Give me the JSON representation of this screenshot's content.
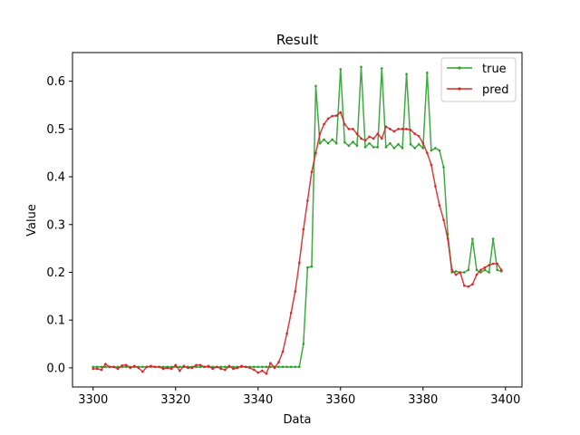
{
  "chart_data": {
    "type": "line",
    "title": "Result",
    "xlabel": "Data",
    "ylabel": "Value",
    "xlim": [
      3295,
      3404
    ],
    "ylim": [
      -0.04,
      0.66
    ],
    "xticks": [
      3300,
      3320,
      3340,
      3360,
      3380,
      3400
    ],
    "yticks": [
      0.0,
      0.1,
      0.2,
      0.3,
      0.4,
      0.5,
      0.6
    ],
    "legend_position": "top-right",
    "x_start": 3300,
    "series": [
      {
        "name": "true",
        "color": "#2ca02c",
        "values": [
          0.002,
          0.002,
          0.002,
          0.002,
          0.002,
          0.002,
          0.002,
          0.002,
          0.002,
          0.002,
          0.002,
          0.002,
          0.002,
          0.002,
          0.002,
          0.002,
          0.002,
          0.002,
          0.002,
          0.002,
          0.002,
          0.002,
          0.002,
          0.002,
          0.002,
          0.002,
          0.002,
          0.002,
          0.002,
          0.002,
          0.002,
          0.002,
          0.002,
          0.002,
          0.002,
          0.002,
          0.002,
          0.002,
          0.002,
          0.002,
          0.002,
          0.002,
          0.002,
          0.002,
          0.002,
          0.002,
          0.002,
          0.002,
          0.002,
          0.002,
          0.002,
          0.05,
          0.21,
          0.212,
          0.59,
          0.47,
          0.478,
          0.47,
          0.478,
          0.47,
          0.625,
          0.472,
          0.465,
          0.473,
          0.465,
          0.63,
          0.462,
          0.47,
          0.462,
          0.462,
          0.627,
          0.462,
          0.47,
          0.46,
          0.468,
          0.46,
          0.615,
          0.468,
          0.46,
          0.468,
          0.46,
          0.618,
          0.455,
          0.46,
          0.455,
          0.42,
          0.28,
          0.2,
          0.202,
          0.2,
          0.2,
          0.205,
          0.27,
          0.205,
          0.2,
          0.205,
          0.2,
          0.27,
          0.205,
          0.202
        ]
      },
      {
        "name": "pred",
        "color": "#d62728",
        "values": [
          -0.002,
          -0.002,
          -0.004,
          0.008,
          0.002,
          0.002,
          -0.002,
          0.005,
          0.006,
          0.0,
          0.004,
          0.0,
          -0.008,
          0.002,
          0.004,
          0.002,
          0.002,
          -0.002,
          0.0,
          -0.002,
          0.006,
          -0.006,
          0.004,
          0.0,
          0.0,
          0.006,
          0.006,
          0.002,
          0.004,
          -0.002,
          0.002,
          -0.002,
          -0.004,
          0.004,
          -0.002,
          0.0,
          0.004,
          0.002,
          0.0,
          -0.004,
          -0.01,
          -0.006,
          -0.012,
          0.01,
          0.0,
          0.012,
          0.034,
          0.072,
          0.115,
          0.16,
          0.22,
          0.29,
          0.35,
          0.41,
          0.45,
          0.49,
          0.51,
          0.522,
          0.527,
          0.528,
          0.535,
          0.51,
          0.5,
          0.5,
          0.49,
          0.48,
          0.476,
          0.484,
          0.48,
          0.49,
          0.48,
          0.505,
          0.5,
          0.495,
          0.5,
          0.5,
          0.5,
          0.498,
          0.49,
          0.485,
          0.47,
          0.45,
          0.425,
          0.38,
          0.34,
          0.31,
          0.27,
          0.205,
          0.195,
          0.2,
          0.172,
          0.17,
          0.175,
          0.195,
          0.205,
          0.21,
          0.215,
          0.218,
          0.218,
          0.205
        ]
      }
    ]
  }
}
